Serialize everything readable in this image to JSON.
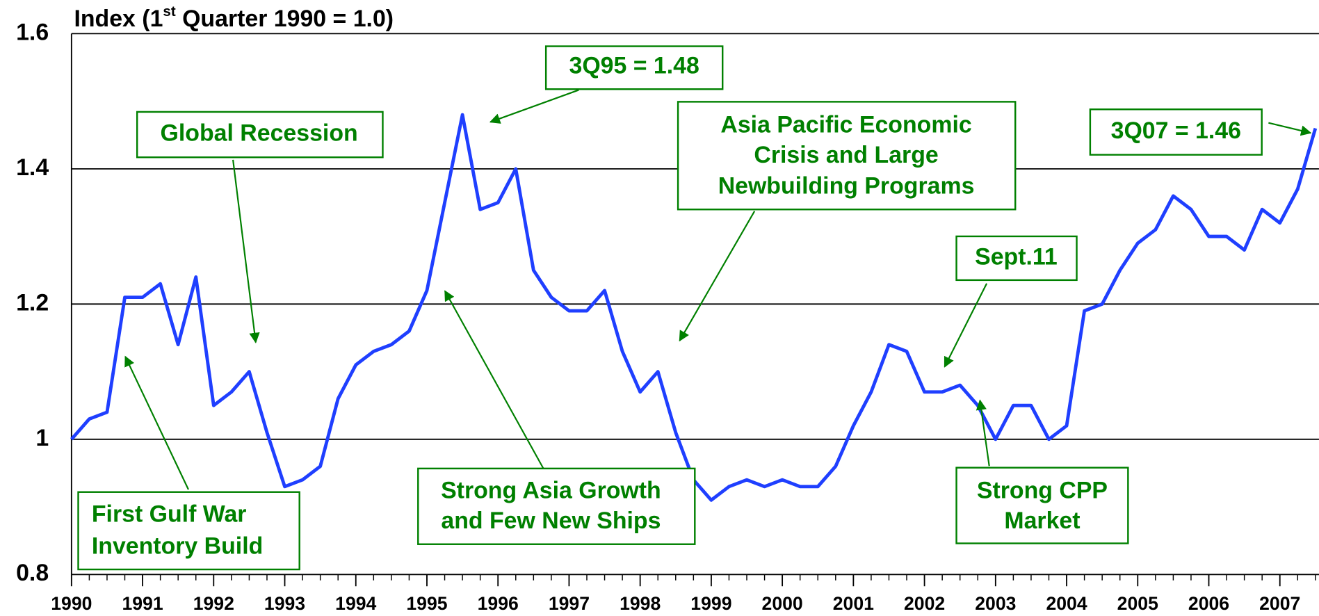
{
  "chart_data": {
    "type": "line",
    "title": [
      "Index  (1",
      "st",
      " Quarter 1990 = 1.0)"
    ],
    "x": [
      1990,
      1990.25,
      1990.5,
      1990.75,
      1991,
      1991.25,
      1991.5,
      1991.75,
      1992,
      1992.25,
      1992.5,
      1992.75,
      1993,
      1993.25,
      1993.5,
      1993.75,
      1994,
      1994.25,
      1994.5,
      1994.75,
      1995,
      1995.25,
      1995.5,
      1995.75,
      1996,
      1996.25,
      1996.5,
      1996.75,
      1997,
      1997.25,
      1997.5,
      1997.75,
      1998,
      1998.25,
      1998.5,
      1998.75,
      1999,
      1999.25,
      1999.5,
      1999.75,
      2000,
      2000.25,
      2000.5,
      2000.75,
      2001,
      2001.25,
      2001.5,
      2001.75,
      2002,
      2002.25,
      2002.5,
      2002.75,
      2003,
      2003.25,
      2003.5,
      2003.75,
      2004,
      2004.25,
      2004.5,
      2004.75,
      2005,
      2005.25,
      2005.5,
      2005.75,
      2006,
      2006.25,
      2006.5,
      2006.75,
      2007,
      2007.25,
      2007.5
    ],
    "series": [
      {
        "color": "#1f3fff",
        "values": [
          1.0,
          1.03,
          1.04,
          1.21,
          1.21,
          1.23,
          1.14,
          1.24,
          1.05,
          1.07,
          1.1,
          1.01,
          0.93,
          0.94,
          0.96,
          1.06,
          1.11,
          1.13,
          1.14,
          1.16,
          1.22,
          1.35,
          1.48,
          1.34,
          1.35,
          1.4,
          1.25,
          1.21,
          1.19,
          1.19,
          1.22,
          1.13,
          1.07,
          1.1,
          1.01,
          0.94,
          0.91,
          0.93,
          0.94,
          0.93,
          0.94,
          0.93,
          0.93,
          0.96,
          1.02,
          1.07,
          1.14,
          1.13,
          1.07,
          1.07,
          1.08,
          1.05,
          1.0,
          1.05,
          1.05,
          1.0,
          1.02,
          1.19,
          1.2,
          1.25,
          1.29,
          1.31,
          1.36,
          1.34,
          1.3,
          1.3,
          1.28,
          1.34,
          1.32,
          1.37,
          1.46
        ]
      }
    ],
    "xlim": [
      1990,
      2007.55
    ],
    "xticks": [
      1990,
      1991,
      1992,
      1993,
      1994,
      1995,
      1996,
      1997,
      1998,
      1999,
      2000,
      2001,
      2002,
      2003,
      2004,
      2005,
      2006,
      2007
    ],
    "ylim": [
      0.8,
      1.6
    ],
    "yticks": [
      1.6,
      1.4,
      1.2,
      1,
      0.8
    ],
    "grid": true,
    "annotations": [
      {
        "lines": [
          "Global Recession"
        ]
      },
      {
        "lines": [
          "3Q95 = 1.48"
        ]
      },
      {
        "lines": [
          "Asia Pacific Economic",
          "Crisis and Large",
          "Newbuilding Programs"
        ]
      },
      {
        "lines": [
          "3Q07 = 1.46"
        ]
      },
      {
        "lines": [
          "Sept.11"
        ]
      },
      {
        "lines": [
          "First Gulf War",
          "Inventory Build"
        ]
      },
      {
        "lines": [
          "Strong Asia Growth",
          "and Few New Ships"
        ]
      },
      {
        "lines": [
          "Strong CPP",
          "Market"
        ]
      }
    ]
  }
}
